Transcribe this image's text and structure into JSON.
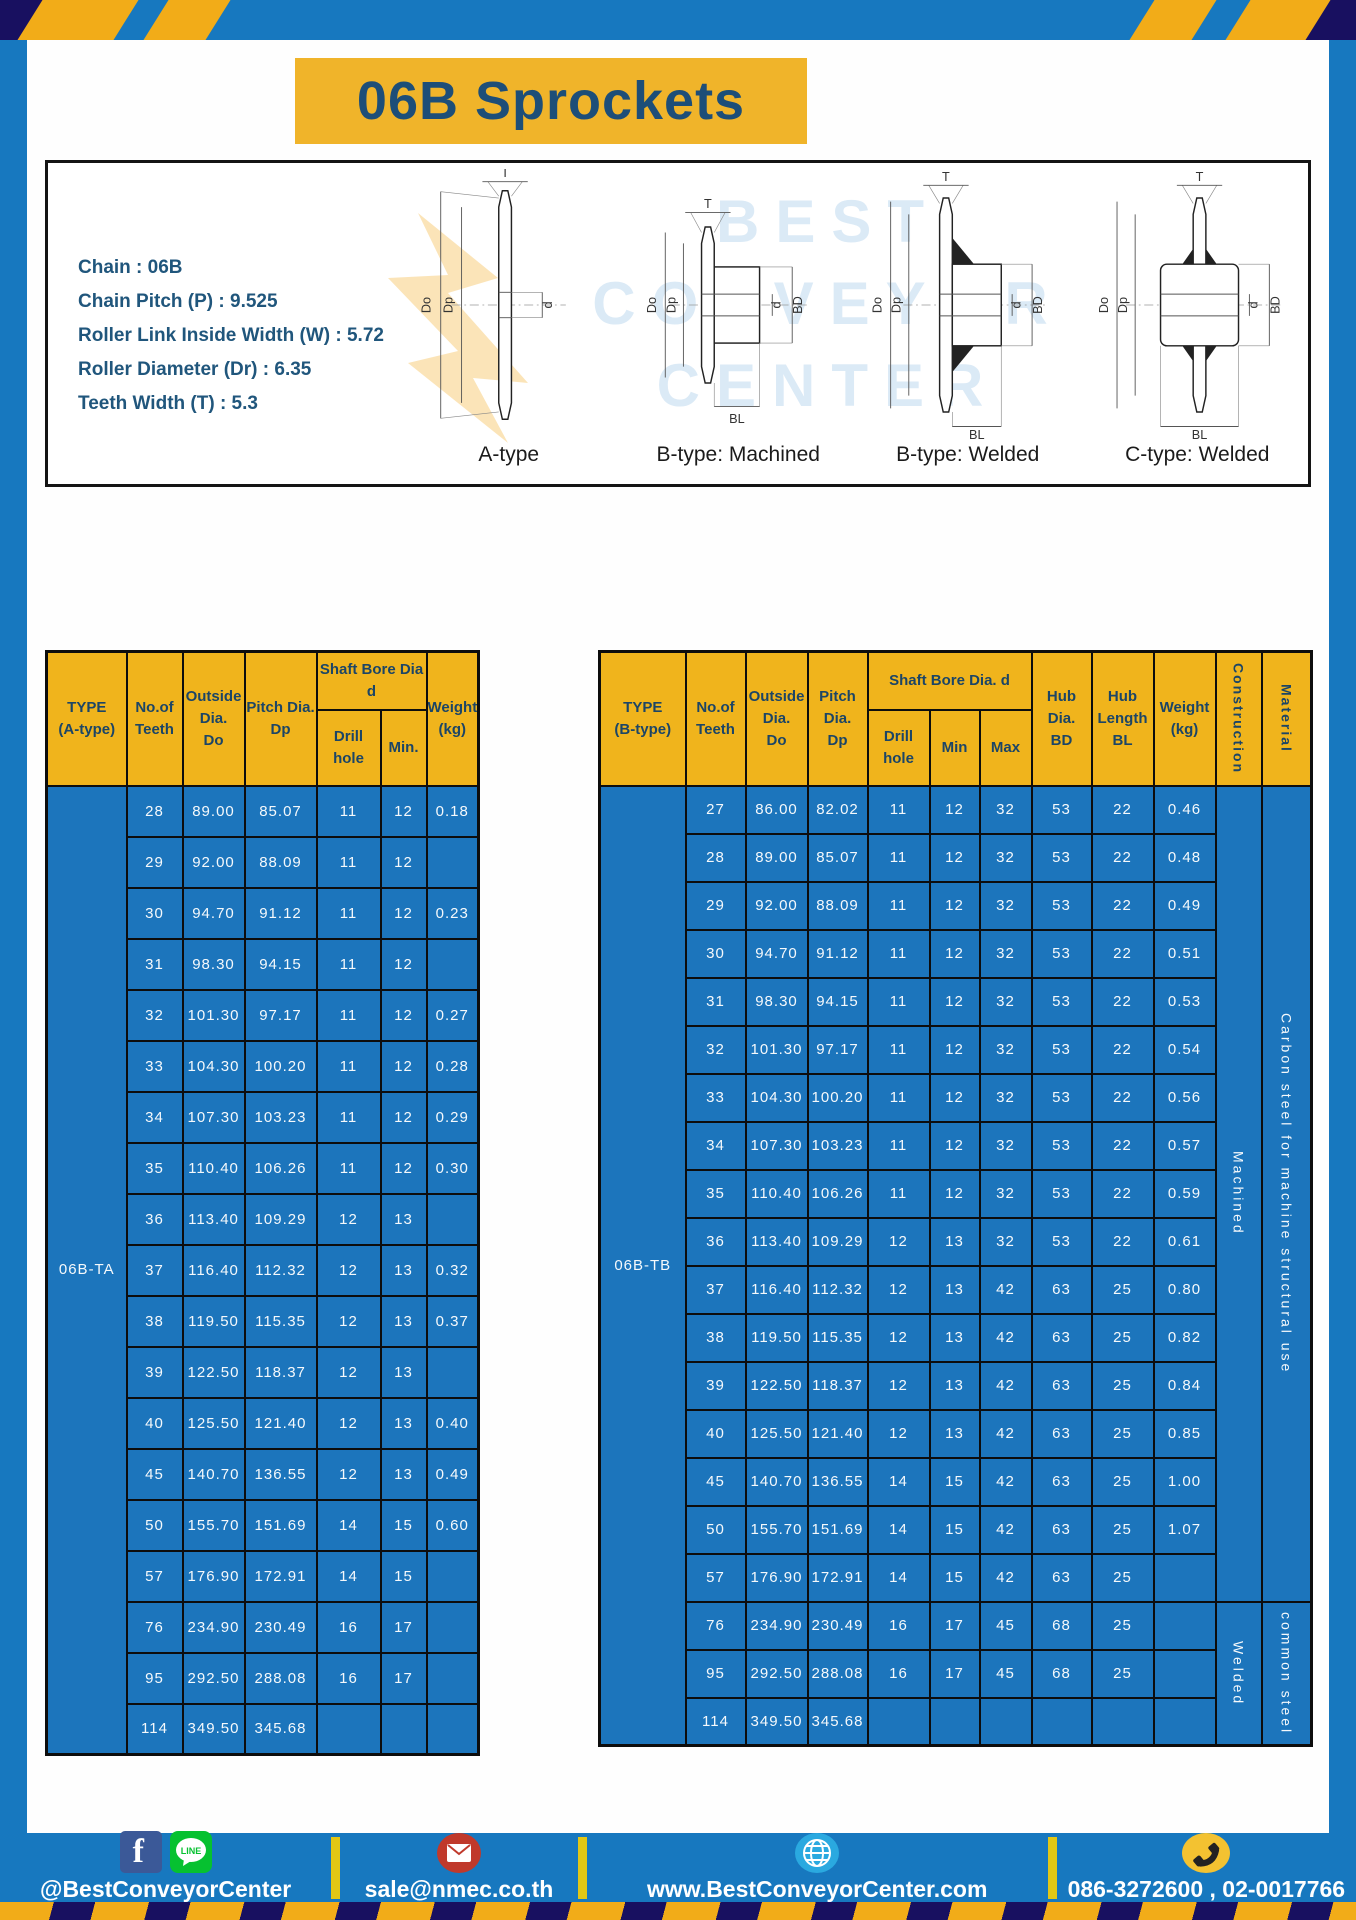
{
  "page": {
    "title": "06B Sprockets"
  },
  "specs": [
    "Chain : 06B",
    "Chain Pitch (P) : 9.525",
    "Roller Link Inside Width (W) : 5.72",
    "Roller Diameter (Dr) : 6.35",
    "Teeth Width (T) : 5.3"
  ],
  "watermark": [
    "BEST",
    "CONVEYOR",
    "CENTER"
  ],
  "diagrams": {
    "captions": [
      "A-type",
      "B-type: Machined",
      "B-type: Welded",
      "C-type: Welded"
    ],
    "dims": {
      "T": "T",
      "Do": "Do",
      "Dp": "Dp",
      "d": "d",
      "BD": "BD",
      "BL": "BL"
    }
  },
  "table_a": {
    "type_label": "06B-TA",
    "headers": {
      "type": "TYPE\n(A-type)",
      "teeth": "No.of\nTeeth",
      "outside": "Outside\nDia.\nDo",
      "pitch": "Pitch Dia.\nDp",
      "shaft_group": "Shaft Bore Dia d",
      "drill": "Drill hole",
      "min": "Min.",
      "weight": "Weight\n(kg)"
    },
    "rows": [
      [
        "28",
        "89.00",
        "85.07",
        "11",
        "12",
        "0.18"
      ],
      [
        "29",
        "92.00",
        "88.09",
        "11",
        "12",
        ""
      ],
      [
        "30",
        "94.70",
        "91.12",
        "11",
        "12",
        "0.23"
      ],
      [
        "31",
        "98.30",
        "94.15",
        "11",
        "12",
        ""
      ],
      [
        "32",
        "101.30",
        "97.17",
        "11",
        "12",
        "0.27"
      ],
      [
        "33",
        "104.30",
        "100.20",
        "11",
        "12",
        "0.28"
      ],
      [
        "34",
        "107.30",
        "103.23",
        "11",
        "12",
        "0.29"
      ],
      [
        "35",
        "110.40",
        "106.26",
        "11",
        "12",
        "0.30"
      ],
      [
        "36",
        "113.40",
        "109.29",
        "12",
        "13",
        ""
      ],
      [
        "37",
        "116.40",
        "112.32",
        "12",
        "13",
        "0.32"
      ],
      [
        "38",
        "119.50",
        "115.35",
        "12",
        "13",
        "0.37"
      ],
      [
        "39",
        "122.50",
        "118.37",
        "12",
        "13",
        ""
      ],
      [
        "40",
        "125.50",
        "121.40",
        "12",
        "13",
        "0.40"
      ],
      [
        "45",
        "140.70",
        "136.55",
        "12",
        "13",
        "0.49"
      ],
      [
        "50",
        "155.70",
        "151.69",
        "14",
        "15",
        "0.60"
      ],
      [
        "57",
        "176.90",
        "172.91",
        "14",
        "15",
        ""
      ],
      [
        "76",
        "234.90",
        "230.49",
        "16",
        "17",
        ""
      ],
      [
        "95",
        "292.50",
        "288.08",
        "16",
        "17",
        ""
      ],
      [
        "114",
        "349.50",
        "345.68",
        "",
        "",
        ""
      ]
    ]
  },
  "table_b": {
    "type_label": "06B-TB",
    "headers": {
      "type": "TYPE\n(B-type)",
      "teeth": "No.of\nTeeth",
      "outside": "Outside\nDia.\nDo",
      "pitch": "Pitch\nDia.\nDp",
      "shaft_group": "Shaft Bore Dia. d",
      "drill": "Drill hole",
      "min": "Min",
      "max": "Max",
      "hub_dia": "Hub\nDia.\nBD",
      "hub_len": "Hub\nLength\nBL",
      "weight": "Weight\n(kg)",
      "construction": "Construction",
      "material": "Material"
    },
    "rows": [
      [
        "27",
        "86.00",
        "82.02",
        "11",
        "12",
        "32",
        "53",
        "22",
        "0.46"
      ],
      [
        "28",
        "89.00",
        "85.07",
        "11",
        "12",
        "32",
        "53",
        "22",
        "0.48"
      ],
      [
        "29",
        "92.00",
        "88.09",
        "11",
        "12",
        "32",
        "53",
        "22",
        "0.49"
      ],
      [
        "30",
        "94.70",
        "91.12",
        "11",
        "12",
        "32",
        "53",
        "22",
        "0.51"
      ],
      [
        "31",
        "98.30",
        "94.15",
        "11",
        "12",
        "32",
        "53",
        "22",
        "0.53"
      ],
      [
        "32",
        "101.30",
        "97.17",
        "11",
        "12",
        "32",
        "53",
        "22",
        "0.54"
      ],
      [
        "33",
        "104.30",
        "100.20",
        "11",
        "12",
        "32",
        "53",
        "22",
        "0.56"
      ],
      [
        "34",
        "107.30",
        "103.23",
        "11",
        "12",
        "32",
        "53",
        "22",
        "0.57"
      ],
      [
        "35",
        "110.40",
        "106.26",
        "11",
        "12",
        "32",
        "53",
        "22",
        "0.59"
      ],
      [
        "36",
        "113.40",
        "109.29",
        "12",
        "13",
        "32",
        "53",
        "22",
        "0.61"
      ],
      [
        "37",
        "116.40",
        "112.32",
        "12",
        "13",
        "42",
        "63",
        "25",
        "0.80"
      ],
      [
        "38",
        "119.50",
        "115.35",
        "12",
        "13",
        "42",
        "63",
        "25",
        "0.82"
      ],
      [
        "39",
        "122.50",
        "118.37",
        "12",
        "13",
        "42",
        "63",
        "25",
        "0.84"
      ],
      [
        "40",
        "125.50",
        "121.40",
        "12",
        "13",
        "42",
        "63",
        "25",
        "0.85"
      ],
      [
        "45",
        "140.70",
        "136.55",
        "14",
        "15",
        "42",
        "63",
        "25",
        "1.00"
      ],
      [
        "50",
        "155.70",
        "151.69",
        "14",
        "15",
        "42",
        "63",
        "25",
        "1.07"
      ],
      [
        "57",
        "176.90",
        "172.91",
        "14",
        "15",
        "42",
        "63",
        "25",
        ""
      ],
      [
        "76",
        "234.90",
        "230.49",
        "16",
        "17",
        "45",
        "68",
        "25",
        ""
      ],
      [
        "95",
        "292.50",
        "288.08",
        "16",
        "17",
        "45",
        "68",
        "25",
        ""
      ],
      [
        "114",
        "349.50",
        "345.68",
        "",
        "",
        "",
        "",
        "",
        ""
      ]
    ],
    "construction_spans": [
      {
        "label": "Machined",
        "start": 0,
        "rows": 17
      },
      {
        "label": "Welded",
        "start": 17,
        "rows": 3
      }
    ],
    "material_spans": [
      {
        "label": "Carbon steel for machine structural use",
        "start": 0,
        "rows": 17
      },
      {
        "label": "common steel",
        "start": 17,
        "rows": 3
      }
    ]
  },
  "footer": {
    "social_handle": "@BestConveyorCenter",
    "line_label": "LINE",
    "email": "sale@nmec.co.th",
    "website": "www.BestConveyorCenter.com",
    "phones": "086-3272600 , 02-0017766"
  },
  "colors": {
    "frame_blue": "#1778bf",
    "table_blue": "#1c75bc",
    "header_yellow": "#f0b41c",
    "banner_yellow": "#f0b42a",
    "navy_text": "#1d4e78",
    "hazard_navy": "#181060",
    "hazard_yellow": "#f2ac18",
    "divider_yellow": "#e3c714"
  }
}
